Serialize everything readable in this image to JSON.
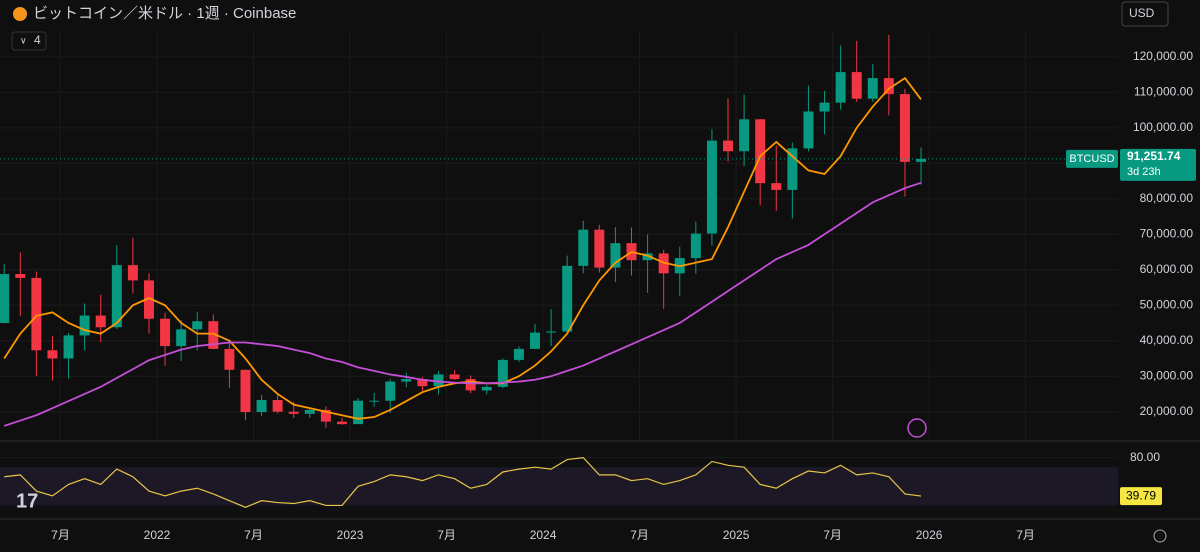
{
  "chart_data": [
    {
      "type": "candlestick",
      "title": "ビットコイン／米ドル · 1週 · Coinbase",
      "indicator_count": "4",
      "currency": "USD",
      "x": [
        "2021-03",
        "2021-04",
        "2021-05",
        "2021-06",
        "2021-07",
        "2021-08",
        "2021-09",
        "2021-10",
        "2021-11",
        "2021-12",
        "2022-01",
        "2022-02",
        "2022-03",
        "2022-04",
        "2022-05",
        "2022-06",
        "2022-07",
        "2022-08",
        "2022-09",
        "2022-10",
        "2022-11",
        "2022-12",
        "2023-01",
        "2023-02",
        "2023-03",
        "2023-04",
        "2023-05",
        "2023-06",
        "2023-07",
        "2023-08",
        "2023-09",
        "2023-10",
        "2023-11",
        "2023-12",
        "2024-01",
        "2024-02",
        "2024-03",
        "2024-04",
        "2024-05",
        "2024-06",
        "2024-07",
        "2024-08",
        "2024-09",
        "2024-10",
        "2024-11",
        "2024-12",
        "2025-01",
        "2025-02",
        "2025-03",
        "2025-04",
        "2025-05",
        "2025-06",
        "2025-07",
        "2025-08",
        "2025-09",
        "2025-10",
        "2025-11",
        "2025-12"
      ],
      "open": [
        45000,
        58800,
        57700,
        37300,
        35000,
        41500,
        47100,
        43800,
        61300,
        57000,
        46200,
        38500,
        43200,
        45500,
        37700,
        31800,
        19900,
        23300,
        20000,
        19400,
        20500,
        17200,
        16500,
        23100,
        23100,
        28500,
        29200,
        27200,
        30500,
        29200,
        26000,
        27000,
        34600,
        37700,
        42300,
        42600,
        61100,
        71300,
        60600,
        67500,
        62700,
        64600,
        59000,
        63300,
        70200,
        96400,
        93400,
        102400,
        84400,
        82500,
        94200,
        104600,
        107100,
        115700,
        108200,
        114000,
        109500,
        90400
      ],
      "high": [
        61700,
        64900,
        59500,
        41300,
        42200,
        50500,
        52900,
        67000,
        69000,
        59000,
        47900,
        45800,
        48200,
        47400,
        40000,
        31900,
        24700,
        25200,
        22800,
        21000,
        21500,
        18400,
        23900,
        25300,
        29200,
        31000,
        29800,
        31400,
        31800,
        30200,
        27500,
        35000,
        38400,
        44700,
        48900,
        64000,
        73800,
        72700,
        72000,
        71900,
        70000,
        65600,
        66500,
        73600,
        99600,
        108300,
        109400,
        102500,
        95000,
        95800,
        111900,
        110400,
        123200,
        124500,
        117900,
        126200,
        111000,
        94500
      ],
      "low": [
        44900,
        47000,
        30000,
        28800,
        29300,
        37300,
        39600,
        43300,
        53300,
        42000,
        32900,
        34300,
        37200,
        37600,
        26700,
        17600,
        18800,
        19500,
        18200,
        18200,
        15500,
        16300,
        16500,
        21400,
        19600,
        26900,
        25800,
        24800,
        28900,
        25200,
        24900,
        26600,
        34000,
        37600,
        38500,
        41900,
        59000,
        59200,
        56500,
        58400,
        53500,
        49000,
        52600,
        58900,
        66800,
        90500,
        89200,
        78200,
        76600,
        74400,
        93400,
        98200,
        105100,
        107300,
        107300,
        103500,
        80600,
        84000
      ],
      "close": [
        58800,
        57700,
        37300,
        35000,
        41500,
        47100,
        43800,
        61300,
        57000,
        46200,
        38500,
        43200,
        45500,
        37700,
        31800,
        19900,
        23300,
        20000,
        19400,
        20500,
        17200,
        16500,
        23100,
        23100,
        28500,
        29200,
        27200,
        30500,
        29200,
        26000,
        27000,
        34600,
        37700,
        42300,
        42600,
        61100,
        71300,
        60600,
        67500,
        62700,
        64600,
        59000,
        63300,
        70200,
        96400,
        93400,
        102400,
        84400,
        82500,
        94200,
        104600,
        107100,
        115700,
        108200,
        114000,
        109500,
        90400,
        91251.74
      ],
      "up_color": "#089981",
      "down_color": "#f23645",
      "lines": [
        {
          "color": "#ff9800",
          "values": [
            35000,
            42000,
            47000,
            48000,
            45000,
            43000,
            42000,
            45000,
            50000,
            52000,
            50000,
            45000,
            42000,
            42000,
            40000,
            35000,
            29000,
            25000,
            22000,
            21000,
            20000,
            19000,
            18000,
            18500,
            20500,
            23000,
            25500,
            27000,
            28000,
            28500,
            28000,
            28000,
            30000,
            33000,
            37000,
            42000,
            50000,
            57000,
            62000,
            65000,
            64000,
            62000,
            61000,
            62000,
            63000,
            72000,
            82000,
            92000,
            96000,
            92000,
            88000,
            87000,
            92000,
            100000,
            106000,
            111000,
            114000,
            108000
          ]
        },
        {
          "color": "#c54ed8",
          "values": [
            16000,
            17500,
            19000,
            21000,
            23000,
            25000,
            27000,
            29500,
            32000,
            34500,
            36000,
            37500,
            38500,
            39000,
            39500,
            39500,
            39000,
            38500,
            37500,
            36500,
            35000,
            34000,
            32500,
            31500,
            30500,
            29800,
            29000,
            28500,
            28200,
            28000,
            28000,
            28200,
            28500,
            29000,
            30000,
            31500,
            33000,
            35000,
            37000,
            39000,
            41000,
            43000,
            45000,
            48000,
            51000,
            54000,
            57000,
            60000,
            63000,
            65000,
            67000,
            70000,
            73000,
            76000,
            79000,
            81000,
            83000,
            84500
          ]
        }
      ],
      "last_label": "91,251.74",
      "symbol": "BTCUSD",
      "countdown": "3d 23h",
      "xlim": [
        "2021-01",
        "2026-12"
      ],
      "xticks": [
        {
          "value": "2021-07",
          "label": "7月"
        },
        {
          "value": "2022-01",
          "label": "2022"
        },
        {
          "value": "2022-07",
          "label": "7月"
        },
        {
          "value": "2023-01",
          "label": "2023"
        },
        {
          "value": "2023-07",
          "label": "7月"
        },
        {
          "value": "2024-01",
          "label": "2024"
        },
        {
          "value": "2024-07",
          "label": "7月"
        },
        {
          "value": "2025-01",
          "label": "2025"
        },
        {
          "value": "2025-07",
          "label": "7月"
        },
        {
          "value": "2026-01",
          "label": "2026"
        },
        {
          "value": "2026-07",
          "label": "7月"
        }
      ],
      "ylim": [
        14000,
        127000
      ],
      "yticks": [
        {
          "value": 20000,
          "label": "20,000.00"
        },
        {
          "value": 30000,
          "label": "30,000.00"
        },
        {
          "value": 40000,
          "label": "40,000.00"
        },
        {
          "value": 50000,
          "label": "50,000.00"
        },
        {
          "value": 60000,
          "label": "60,000.00"
        },
        {
          "value": 70000,
          "label": "70,000.00"
        },
        {
          "value": 80000,
          "label": "80,000.00"
        },
        {
          "value": 90000,
          "label": "90,000.00"
        },
        {
          "value": 100000,
          "label": "100,000.00"
        },
        {
          "value": 110000,
          "label": "110,000.00"
        },
        {
          "value": 120000,
          "label": "120,000.00"
        }
      ]
    },
    {
      "type": "line",
      "color": "#e8c547",
      "band": [
        30,
        70
      ],
      "values": [
        60,
        62,
        45,
        40,
        52,
        58,
        52,
        68,
        60,
        45,
        40,
        45,
        48,
        42,
        35,
        28,
        35,
        33,
        32,
        35,
        30,
        30,
        50,
        55,
        62,
        60,
        56,
        62,
        58,
        48,
        52,
        65,
        68,
        70,
        68,
        78,
        80,
        62,
        62,
        56,
        58,
        52,
        56,
        62,
        76,
        72,
        70,
        52,
        48,
        58,
        66,
        64,
        72,
        62,
        64,
        60,
        42,
        39.79
      ],
      "ylim": [
        20,
        88
      ],
      "yticks": [
        {
          "value": 80,
          "label": "80.00"
        }
      ]
    }
  ]
}
